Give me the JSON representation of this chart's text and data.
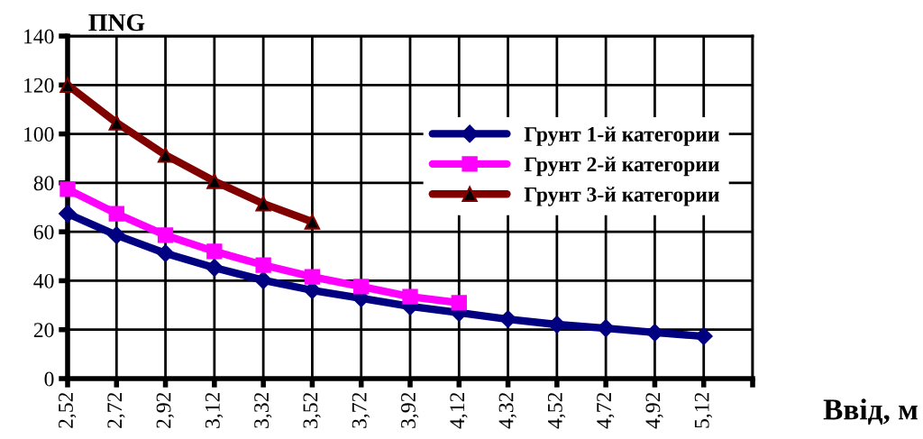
{
  "chart_data": {
    "type": "line",
    "ylabel": "ПNG",
    "xlabel": "Ввід, м",
    "categories": [
      "2,52",
      "2,72",
      "2,92",
      "3,12",
      "3,32",
      "3,52",
      "3,72",
      "3,92",
      "4,12",
      "4,32",
      "4,52",
      "4,72",
      "4,92",
      "5,12",
      null
    ],
    "series": [
      {
        "name": "Грунт 1-й категории",
        "color": "#000080",
        "marker": "diamond",
        "values": [
          67.4,
          58.6,
          51.2,
          45.3,
          40.2,
          36.1,
          32.8,
          29.5,
          26.9,
          24.3,
          22.1,
          20.6,
          18.8,
          17.3,
          null
        ]
      },
      {
        "name": "Грунт 2-й категории",
        "color": "#ff00ff",
        "marker": "square",
        "values": [
          77.4,
          67.4,
          58.6,
          52,
          46.4,
          41.6,
          37.6,
          33.5,
          31,
          null,
          null,
          null,
          null,
          null,
          null
        ]
      },
      {
        "name": "Грунт 3-й категории",
        "color": "#800000",
        "marker": "triangle",
        "values": [
          120,
          104.6,
          91.4,
          80.7,
          71.5,
          64.1,
          null,
          null,
          null,
          null,
          null,
          null,
          null,
          null,
          null
        ]
      }
    ],
    "ylim": [
      0,
      140
    ],
    "yticks": [
      0,
      20,
      40,
      60,
      80,
      100,
      120,
      140
    ],
    "grid": true,
    "legend": "right"
  }
}
